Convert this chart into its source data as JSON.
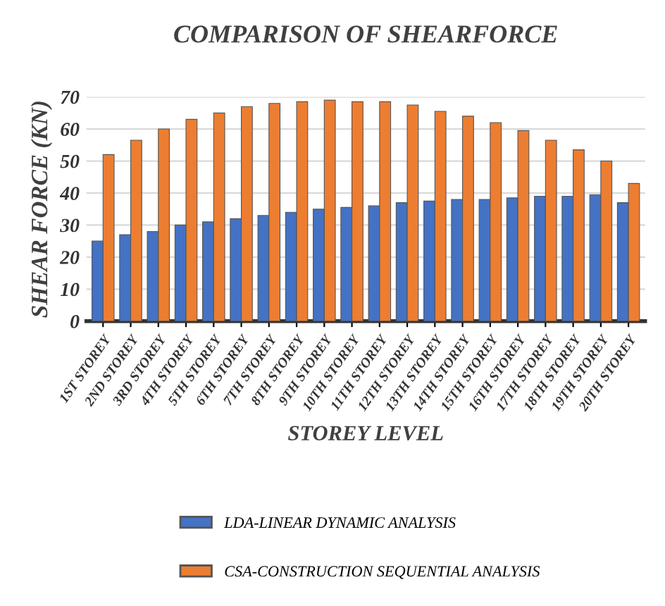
{
  "chart_data": {
    "type": "bar",
    "title": "COMPARISON OF SHEARFORCE",
    "xlabel": "STOREY LEVEL",
    "ylabel": "SHEAR FORCE (KN)",
    "categories": [
      "1ST STOREY",
      "2ND STOREY",
      "3RD STOREY",
      "4TH STOREY",
      "5TH STOREY",
      "6TH STOREY",
      "7TH STOREY",
      "8TH STOREY",
      "9TH STOREY",
      "10TH STOREY",
      "11TH STOREY",
      "12TH STOREY",
      "13TH STOREY",
      "14TH STOREY",
      "15TH STOREY",
      "16TH STOREY",
      "17TH STOREY",
      "18TH STOREY",
      "19TH STOREY",
      "20TH STOREY"
    ],
    "series": [
      {
        "name": "LDA-LINEAR DYNAMIC ANALYSIS",
        "color": "#4472c4",
        "values": [
          25,
          27,
          28,
          30,
          31,
          32,
          33,
          34,
          35,
          35.5,
          36,
          37,
          37.5,
          38,
          38,
          38.5,
          39,
          39,
          39.5,
          37
        ]
      },
      {
        "name": "CSA-CONSTRUCTION SEQUENTIAL ANALYSIS",
        "color": "#ed7d31",
        "values": [
          52,
          56.5,
          60,
          63,
          65,
          67,
          68,
          68.5,
          69,
          68.5,
          68.5,
          67.5,
          65.5,
          64,
          62,
          59.5,
          56.5,
          53.5,
          50,
          43
        ]
      }
    ],
    "ylim": [
      0,
      70
    ],
    "yticks": [
      0,
      10,
      20,
      30,
      40,
      50,
      60,
      70
    ],
    "grid": "y",
    "legend": "bottom"
  }
}
